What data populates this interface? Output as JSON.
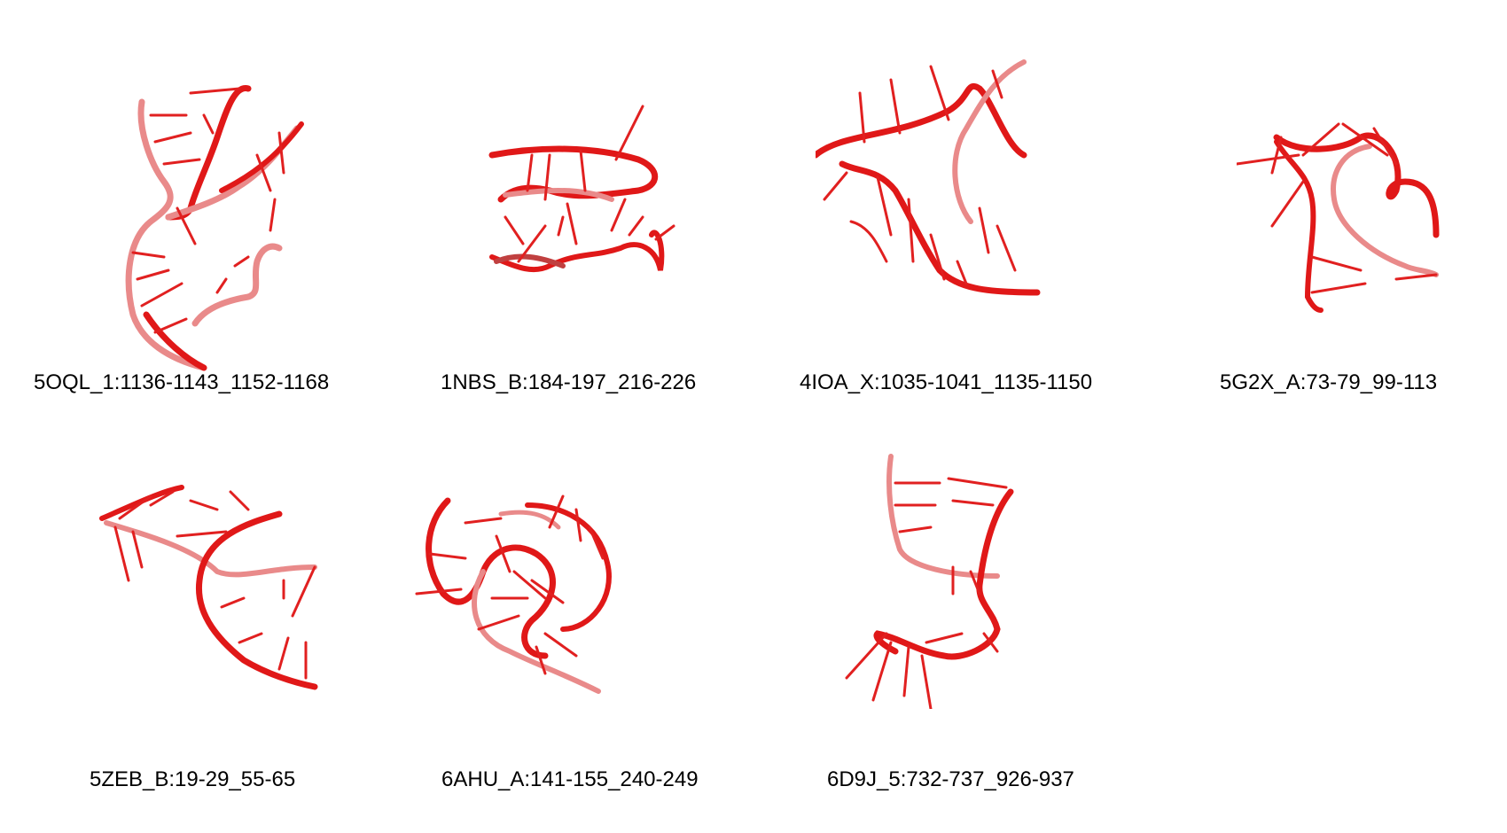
{
  "figure": {
    "panels": [
      {
        "id": "p1",
        "label": "5OQL_1:1136-1143_1152-1168",
        "structure": "rna-3d-cartoon"
      },
      {
        "id": "p2",
        "label": "1NBS_B:184-197_216-226",
        "structure": "rna-3d-cartoon"
      },
      {
        "id": "p3",
        "label": "4IOA_X:1035-1041_1135-1150",
        "structure": "rna-3d-cartoon"
      },
      {
        "id": "p4",
        "label": "5G2X_A:73-79_99-113",
        "structure": "rna-3d-cartoon"
      },
      {
        "id": "p5",
        "label": "5ZEB_B:19-29_55-65",
        "structure": "rna-3d-cartoon"
      },
      {
        "id": "p6",
        "label": "6AHU_A:141-155_240-249",
        "structure": "rna-3d-cartoon"
      },
      {
        "id": "p7",
        "label": "6D9J_5:732-737_926-937",
        "structure": "rna-3d-cartoon"
      }
    ],
    "colors": {
      "backbone": "#e01818",
      "backbone_dark": "#b00c0c",
      "backbone_light": "#e98a8a",
      "base": "#e12020",
      "background": "#ffffff"
    }
  }
}
